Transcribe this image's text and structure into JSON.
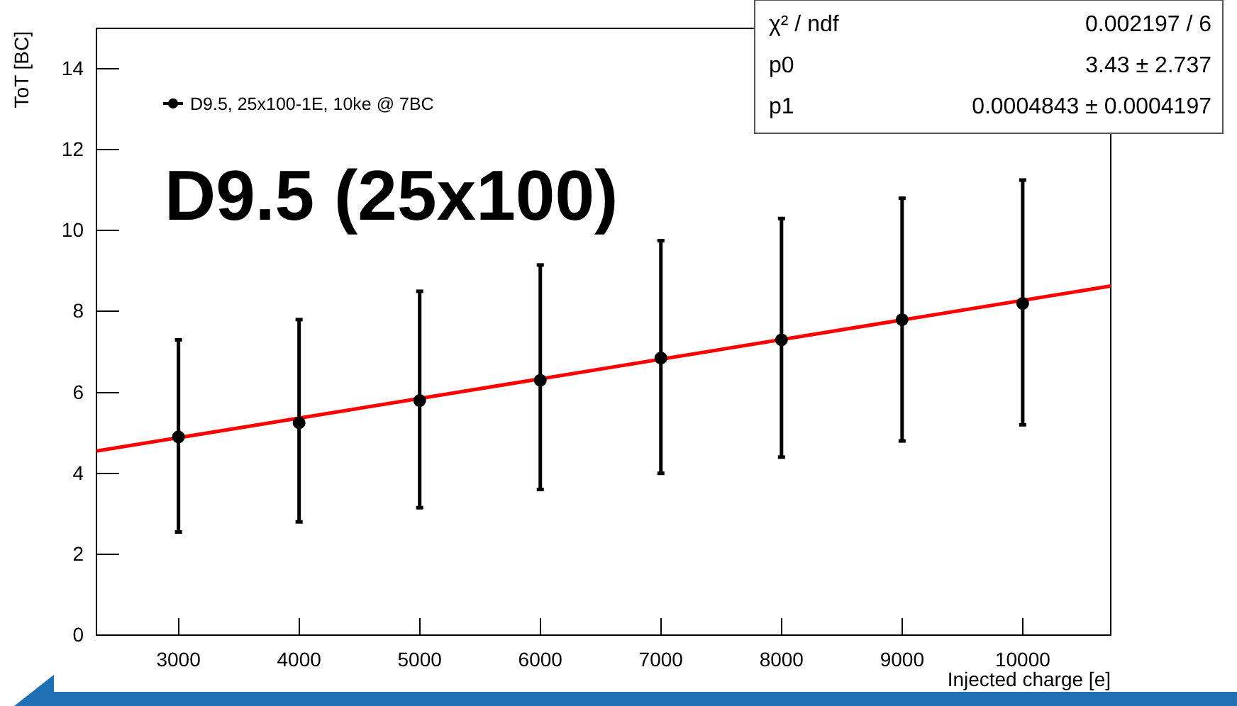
{
  "chart_data": {
    "type": "scatter",
    "xlabel": "Injected charge [e]",
    "ylabel": "ToT [BC]",
    "x": [
      3000,
      4000,
      5000,
      6000,
      7000,
      8000,
      9000,
      10000
    ],
    "series": [
      {
        "name": "D9.5, 25x100-1E, 10ke @ 7BC",
        "type": "scatter",
        "color": "#000000",
        "marker": "circle",
        "values": [
          4.9,
          5.25,
          5.8,
          6.3,
          6.85,
          7.3,
          7.8,
          8.2
        ],
        "errors": [
          [
            2.55,
            7.3
          ],
          [
            2.8,
            7.8
          ],
          [
            3.15,
            8.5
          ],
          [
            3.6,
            9.15
          ],
          [
            4.0,
            9.75
          ],
          [
            4.4,
            10.3
          ],
          [
            4.8,
            10.8
          ],
          [
            5.2,
            11.25
          ]
        ]
      },
      {
        "type": "line",
        "color": "#ff0000",
        "x": [
          2320,
          10730
        ],
        "values": [
          4.55,
          8.63
        ]
      }
    ],
    "xlim": [
      2320,
      10730
    ],
    "ylim": [
      0,
      15
    ],
    "xticks": [
      3000,
      4000,
      5000,
      6000,
      7000,
      8000,
      9000,
      10000
    ],
    "yticks": [
      0,
      2,
      4,
      6,
      8,
      10,
      12,
      14
    ],
    "legend": "top left",
    "grid": false,
    "annotations": [
      "D9.5 (25x100)",
      "χ² / ndf",
      "0.002197 / 6",
      "p0",
      "3.43 ± 2.737",
      "p1",
      "0.0004843 ± 0.0004197"
    ]
  }
}
